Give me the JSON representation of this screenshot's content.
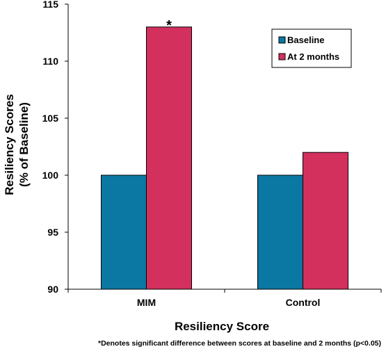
{
  "chart_data": {
    "type": "bar",
    "categories": [
      "MIM",
      "Control"
    ],
    "series": [
      {
        "name": "Baseline",
        "values": [
          100,
          100
        ],
        "color": "#0b77a3"
      },
      {
        "name": "At 2 months",
        "values": [
          113,
          102
        ],
        "color": "#d4305d"
      }
    ],
    "yticks": [
      90,
      95,
      100,
      105,
      110,
      115
    ],
    "ylim": [
      90,
      115
    ],
    "ylabel_line1": "Resiliency Scores",
    "ylabel_line2": "(% of Baseline)",
    "xlabel": "Resiliency Score",
    "legend_position": "top-right",
    "grid": false,
    "annotations": [
      {
        "text": "*",
        "category": "MIM",
        "series": "At 2 months"
      }
    ],
    "footnote": "*Denotes significant difference between scores at baseline and 2 months (p<0.05)"
  }
}
